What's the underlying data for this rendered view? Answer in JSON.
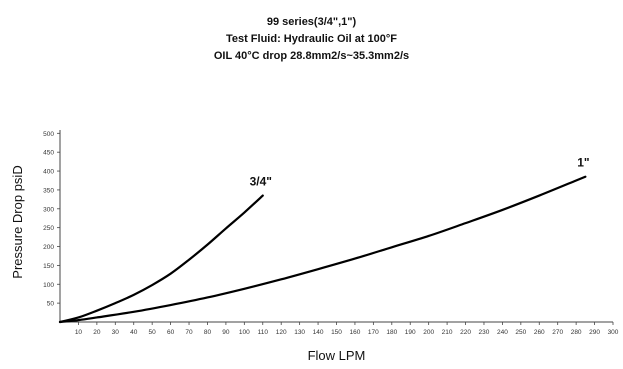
{
  "chart_data": {
    "type": "line",
    "title_lines": [
      "99 series(3/4\",1\")",
      "Test Fluid: Hydraulic Oil at 100°F",
      "OIL 40°C drop 28.8mm2/s~35.3mm2/s"
    ],
    "xlabel": "Flow LPM",
    "ylabel": "Pressure Drop psiD",
    "xlim": [
      0,
      300
    ],
    "ylim": [
      0,
      530
    ],
    "x_ticks": [
      10,
      20,
      30,
      40,
      50,
      60,
      70,
      80,
      90,
      100,
      110,
      120,
      130,
      140,
      150,
      160,
      170,
      180,
      190,
      200,
      210,
      220,
      230,
      240,
      250,
      260,
      270,
      280,
      290,
      300
    ],
    "y_ticks": [
      50,
      100,
      150,
      200,
      250,
      300,
      350,
      400,
      450,
      500
    ],
    "grid": false,
    "legend": "none",
    "series": [
      {
        "name": "3/4\"",
        "color": "#000000",
        "x": [
          0,
          10,
          20,
          30,
          40,
          50,
          60,
          70,
          80,
          90,
          100,
          110
        ],
        "y": [
          0,
          12,
          30,
          50,
          72,
          98,
          128,
          165,
          205,
          248,
          290,
          335
        ]
      },
      {
        "name": "1\"",
        "color": "#000000",
        "x": [
          0,
          10,
          20,
          40,
          60,
          80,
          100,
          120,
          140,
          160,
          180,
          200,
          220,
          240,
          260,
          280,
          285
        ],
        "y": [
          0,
          5,
          12,
          27,
          45,
          65,
          88,
          113,
          140,
          168,
          198,
          228,
          262,
          297,
          335,
          375,
          385
        ]
      }
    ]
  }
}
